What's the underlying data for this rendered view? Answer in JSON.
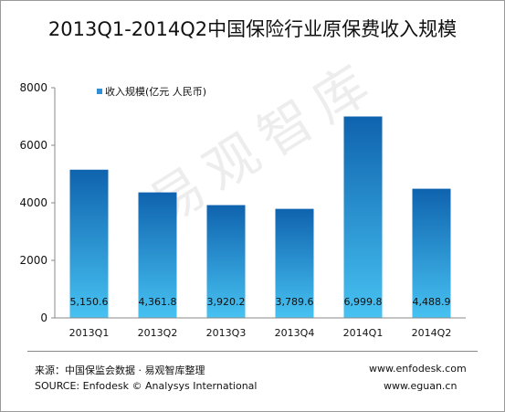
{
  "title": "2013Q1-2014Q2中国保险行业原保费收入规模",
  "watermark": "易观智库",
  "footer": {
    "source_cn": "来源：中国保监会数据 · 易观智库整理",
    "source_en": "SOURCE: Enfodesk © Analysys International",
    "site1": "www.enfodesk.com",
    "site2": "www.eguan.cn"
  },
  "colors": {
    "bar_top": "#0f63ae",
    "bar_bottom": "#47c2f2",
    "legend_marker": "#2e8fd8",
    "axis": "#888888"
  },
  "chart_data": {
    "type": "bar",
    "title": "2013Q1-2014Q2中国保险行业原保费收入规模",
    "categories": [
      "2013Q1",
      "2013Q2",
      "2013Q3",
      "2013Q4",
      "2014Q1",
      "2014Q2"
    ],
    "series": [
      {
        "name": "收入规模(亿元 人民币)",
        "values": [
          5150.6,
          4361.8,
          3920.2,
          3789.6,
          6999.8,
          4488.9
        ]
      }
    ],
    "data_labels": [
      "5,150.6",
      "4,361.8",
      "3,920.2",
      "3,789.6",
      "6,999.8",
      "4,488.9"
    ],
    "yticks": [
      0,
      2000,
      4000,
      6000,
      8000
    ],
    "ylim": [
      0,
      8000
    ],
    "grid": false,
    "legend_position": "top-left"
  }
}
